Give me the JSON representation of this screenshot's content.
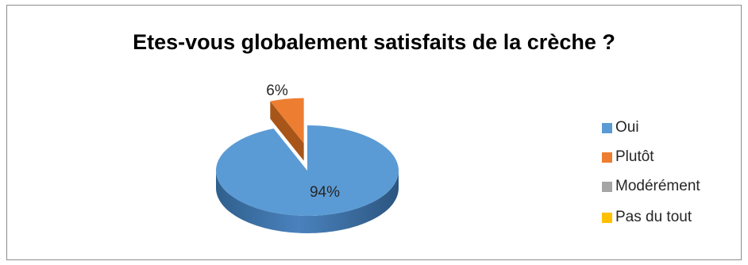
{
  "chart_data": {
    "type": "pie",
    "title": "Etes-vous globalement satisfaits de la crèche ?",
    "categories": [
      "Oui",
      "Plutôt",
      "Modérément",
      "Pas du tout"
    ],
    "values": [
      94,
      6,
      0,
      0
    ],
    "data_labels": [
      "94%",
      "6%",
      "",
      ""
    ],
    "colors": [
      "#5B9BD5",
      "#ED7D31",
      "#A5A5A5",
      "#FFC000"
    ],
    "legend_position": "right",
    "style": "3d-exploded"
  }
}
